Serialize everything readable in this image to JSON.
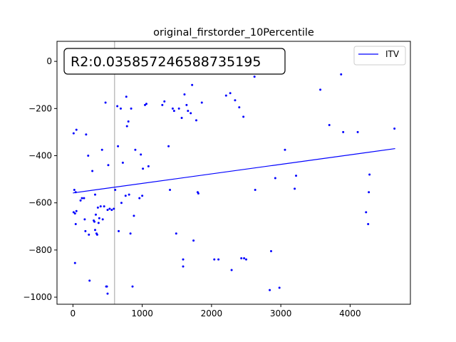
{
  "chart_data": {
    "type": "scatter",
    "title": "original_firstorder_10Percentile",
    "xlabel": "",
    "ylabel": "",
    "xlim": [
      -230,
      4870
    ],
    "ylim": [
      -1030,
      85
    ],
    "xticks": [
      0,
      1000,
      2000,
      3000,
      4000
    ],
    "yticks": [
      0,
      -200,
      -400,
      -600,
      -800,
      -1000
    ],
    "grid": false,
    "legend_position": "top-right",
    "annotation": "R2:0.035857246588735195",
    "vertical_line_x": 600,
    "series": [
      {
        "name": "ITV",
        "kind": "line",
        "color": "#0000ff",
        "points": [
          [
            0,
            -558
          ],
          [
            4650,
            -370
          ]
        ]
      },
      {
        "kind": "scatter",
        "color": "#0000ff",
        "points": [
          [
            10,
            -305
          ],
          [
            50,
            -290
          ],
          [
            20,
            -545
          ],
          [
            40,
            -555
          ],
          [
            30,
            -645
          ],
          [
            10,
            -640
          ],
          [
            50,
            -635
          ],
          [
            40,
            -690
          ],
          [
            30,
            -855
          ],
          [
            110,
            -590
          ],
          [
            130,
            -580
          ],
          [
            160,
            -580
          ],
          [
            190,
            -310
          ],
          [
            220,
            -400
          ],
          [
            170,
            -670
          ],
          [
            180,
            -720
          ],
          [
            240,
            -930
          ],
          [
            230,
            -735
          ],
          [
            280,
            -465
          ],
          [
            300,
            -675
          ],
          [
            310,
            -680
          ],
          [
            320,
            -565
          ],
          [
            320,
            -715
          ],
          [
            330,
            -650
          ],
          [
            340,
            -730
          ],
          [
            350,
            -735
          ],
          [
            360,
            -620
          ],
          [
            370,
            -685
          ],
          [
            380,
            -665
          ],
          [
            400,
            -615
          ],
          [
            420,
            -375
          ],
          [
            430,
            -670
          ],
          [
            450,
            -615
          ],
          [
            470,
            -175
          ],
          [
            480,
            -955
          ],
          [
            490,
            -955
          ],
          [
            500,
            -630
          ],
          [
            500,
            -985
          ],
          [
            510,
            -440
          ],
          [
            530,
            -625
          ],
          [
            560,
            -630
          ],
          [
            590,
            -625
          ],
          [
            610,
            -545
          ],
          [
            640,
            -190
          ],
          [
            650,
            -360
          ],
          [
            660,
            -720
          ],
          [
            690,
            -200
          ],
          [
            700,
            -600
          ],
          [
            720,
            -430
          ],
          [
            760,
            -570
          ],
          [
            770,
            -150
          ],
          [
            780,
            -275
          ],
          [
            800,
            -255
          ],
          [
            810,
            -565
          ],
          [
            830,
            -730
          ],
          [
            840,
            -200
          ],
          [
            860,
            -955
          ],
          [
            880,
            -655
          ],
          [
            900,
            -375
          ],
          [
            960,
            -580
          ],
          [
            980,
            -395
          ],
          [
            1000,
            -570
          ],
          [
            1010,
            -455
          ],
          [
            1040,
            -185
          ],
          [
            1060,
            -180
          ],
          [
            1090,
            -445
          ],
          [
            1290,
            -185
          ],
          [
            1320,
            -170
          ],
          [
            1380,
            -360
          ],
          [
            1400,
            -545
          ],
          [
            1440,
            -200
          ],
          [
            1460,
            -210
          ],
          [
            1490,
            -730
          ],
          [
            1530,
            -200
          ],
          [
            1570,
            -240
          ],
          [
            1590,
            -870
          ],
          [
            1590,
            -840
          ],
          [
            1610,
            -140
          ],
          [
            1640,
            -185
          ],
          [
            1660,
            -210
          ],
          [
            1700,
            -220
          ],
          [
            1720,
            -100
          ],
          [
            1740,
            -760
          ],
          [
            1780,
            -250
          ],
          [
            1800,
            -555
          ],
          [
            1810,
            -560
          ],
          [
            1860,
            -175
          ],
          [
            2040,
            -840
          ],
          [
            2100,
            -840
          ],
          [
            2210,
            -145
          ],
          [
            2270,
            -135
          ],
          [
            2290,
            -885
          ],
          [
            2340,
            -165
          ],
          [
            2400,
            -195
          ],
          [
            2430,
            -835
          ],
          [
            2460,
            -235
          ],
          [
            2470,
            -835
          ],
          [
            2500,
            -840
          ],
          [
            2620,
            -65
          ],
          [
            2630,
            -545
          ],
          [
            2840,
            -970
          ],
          [
            2860,
            -805
          ],
          [
            2920,
            -495
          ],
          [
            2980,
            -960
          ],
          [
            3060,
            -375
          ],
          [
            3200,
            -540
          ],
          [
            3220,
            -485
          ],
          [
            3570,
            -120
          ],
          [
            3700,
            -270
          ],
          [
            3870,
            -55
          ],
          [
            3900,
            -300
          ],
          [
            4110,
            -300
          ],
          [
            4230,
            -640
          ],
          [
            4260,
            -690
          ],
          [
            4270,
            -555
          ],
          [
            4280,
            -480
          ],
          [
            4640,
            -285
          ]
        ]
      }
    ]
  }
}
